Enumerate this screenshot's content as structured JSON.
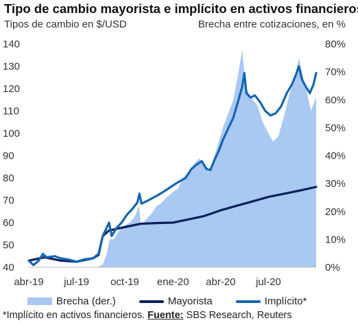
{
  "title": "Tipo de cambio mayorista e implícito en activos financieros",
  "left_axis_label": "Tipos de cambio en $/USD",
  "right_axis_label": "Brecha entre cotizaciones, en %",
  "legend": {
    "brecha": "Brecha (der.)",
    "mayorista": "Mayorista",
    "implicito": "Implícito*"
  },
  "footnote": {
    "prefix": "*Implícito en activos financieros. ",
    "source_label": "Fuente:",
    "source": " SBS Research, Reuters"
  },
  "colors": {
    "brecha": "#a9c8f2",
    "mayorista": "#0a1f5c",
    "implicito": "#1565b3",
    "gridline": "#d0d0d0"
  },
  "chart_data": {
    "type": "line",
    "x_axis": {
      "tick_labels": [
        "abr-19",
        "jul-19",
        "oct-19",
        "ene-20",
        "abr-20",
        "jul-20"
      ],
      "tick_dates": [
        "2019-04-01",
        "2019-07-01",
        "2019-10-01",
        "2020-01-01",
        "2020-04-01",
        "2020-07-01"
      ],
      "range": [
        "2019-04-01",
        "2020-09-30"
      ]
    },
    "y_left": {
      "ylim": [
        40,
        140
      ],
      "ticks": [
        40,
        50,
        60,
        70,
        80,
        90,
        100,
        110,
        120,
        130,
        140
      ]
    },
    "y_right": {
      "ylim": [
        0,
        80
      ],
      "ticks": [
        "0%",
        "10%",
        "20%",
        "30%",
        "40%",
        "50%",
        "60%",
        "70%",
        "80%"
      ]
    },
    "series": [
      {
        "name": "Brecha (der.)",
        "type": "area",
        "axis": "right",
        "points": [
          [
            "2019-04-01",
            0
          ],
          [
            "2019-08-10",
            0
          ],
          [
            "2019-08-20",
            1
          ],
          [
            "2019-08-28",
            5
          ],
          [
            "2019-09-02",
            10
          ],
          [
            "2019-09-10",
            10
          ],
          [
            "2019-09-20",
            13
          ],
          [
            "2019-10-01",
            15
          ],
          [
            "2019-10-10",
            16
          ],
          [
            "2019-10-20",
            18
          ],
          [
            "2019-10-28",
            22
          ],
          [
            "2019-11-01",
            15
          ],
          [
            "2019-11-10",
            17
          ],
          [
            "2019-11-20",
            19
          ],
          [
            "2019-12-01",
            22
          ],
          [
            "2019-12-10",
            23
          ],
          [
            "2019-12-20",
            25
          ],
          [
            "2020-01-01",
            27
          ],
          [
            "2020-01-10",
            28
          ],
          [
            "2020-01-20",
            32
          ],
          [
            "2020-02-01",
            34
          ],
          [
            "2020-02-10",
            37
          ],
          [
            "2020-02-20",
            39
          ],
          [
            "2020-03-01",
            37
          ],
          [
            "2020-03-10",
            34
          ],
          [
            "2020-03-20",
            40
          ],
          [
            "2020-03-28",
            45
          ],
          [
            "2020-04-05",
            50
          ],
          [
            "2020-04-15",
            55
          ],
          [
            "2020-04-25",
            60
          ],
          [
            "2020-05-05",
            70
          ],
          [
            "2020-05-12",
            78
          ],
          [
            "2020-05-18",
            65
          ],
          [
            "2020-05-25",
            62
          ],
          [
            "2020-06-01",
            60
          ],
          [
            "2020-06-10",
            58
          ],
          [
            "2020-06-20",
            52
          ],
          [
            "2020-07-01",
            48
          ],
          [
            "2020-07-10",
            45
          ],
          [
            "2020-07-20",
            47
          ],
          [
            "2020-08-01",
            55
          ],
          [
            "2020-08-10",
            62
          ],
          [
            "2020-08-20",
            68
          ],
          [
            "2020-08-28",
            75
          ],
          [
            "2020-09-05",
            68
          ],
          [
            "2020-09-12",
            63
          ],
          [
            "2020-09-20",
            56
          ],
          [
            "2020-09-30",
            61
          ]
        ]
      },
      {
        "name": "Mayorista",
        "type": "line",
        "axis": "left",
        "points": [
          [
            "2019-04-01",
            43.0
          ],
          [
            "2019-05-01",
            44.5
          ],
          [
            "2019-06-01",
            43.0
          ],
          [
            "2019-07-01",
            42.5
          ],
          [
            "2019-08-01",
            44.0
          ],
          [
            "2019-08-12",
            45.5
          ],
          [
            "2019-08-20",
            54.0
          ],
          [
            "2019-09-01",
            56.5
          ],
          [
            "2019-10-01",
            58.0
          ],
          [
            "2019-11-01",
            59.5
          ],
          [
            "2019-12-01",
            59.8
          ],
          [
            "2020-01-01",
            60.0
          ],
          [
            "2020-02-01",
            61.5
          ],
          [
            "2020-03-01",
            63.0
          ],
          [
            "2020-04-01",
            65.5
          ],
          [
            "2020-05-01",
            67.5
          ],
          [
            "2020-06-01",
            69.5
          ],
          [
            "2020-07-01",
            71.5
          ],
          [
            "2020-08-01",
            73.0
          ],
          [
            "2020-09-01",
            74.5
          ],
          [
            "2020-09-30",
            76.0
          ]
        ]
      },
      {
        "name": "Implícito*",
        "type": "line",
        "axis": "left",
        "points": [
          [
            "2019-04-01",
            43.0
          ],
          [
            "2019-04-10",
            41.0
          ],
          [
            "2019-04-20",
            43.0
          ],
          [
            "2019-04-28",
            46.0
          ],
          [
            "2019-05-05",
            44.5
          ],
          [
            "2019-05-20",
            45.0
          ],
          [
            "2019-06-01",
            44.0
          ],
          [
            "2019-06-15",
            43.5
          ],
          [
            "2019-07-01",
            42.5
          ],
          [
            "2019-07-15",
            43.5
          ],
          [
            "2019-08-01",
            44.0
          ],
          [
            "2019-08-12",
            46.0
          ],
          [
            "2019-08-20",
            54.0
          ],
          [
            "2019-09-01",
            60.0
          ],
          [
            "2019-09-06",
            54.0
          ],
          [
            "2019-09-15",
            57.5
          ],
          [
            "2019-09-25",
            60.0
          ],
          [
            "2019-10-05",
            63.5
          ],
          [
            "2019-10-15",
            66.0
          ],
          [
            "2019-10-25",
            69.0
          ],
          [
            "2019-10-29",
            73.0
          ],
          [
            "2019-11-02",
            68.5
          ],
          [
            "2019-11-15",
            70.0
          ],
          [
            "2019-12-01",
            72.0
          ],
          [
            "2019-12-15",
            74.0
          ],
          [
            "2019-12-28",
            76.0
          ],
          [
            "2020-01-10",
            78.0
          ],
          [
            "2020-01-25",
            80.0
          ],
          [
            "2020-02-05",
            84.0
          ],
          [
            "2020-02-15",
            86.0
          ],
          [
            "2020-02-25",
            87.5
          ],
          [
            "2020-03-05",
            84.0
          ],
          [
            "2020-03-12",
            83.5
          ],
          [
            "2020-03-20",
            88.0
          ],
          [
            "2020-03-28",
            92.0
          ],
          [
            "2020-04-05",
            97.0
          ],
          [
            "2020-04-15",
            102.0
          ],
          [
            "2020-04-25",
            107.0
          ],
          [
            "2020-05-05",
            115.0
          ],
          [
            "2020-05-12",
            121.0
          ],
          [
            "2020-05-16",
            127.0
          ],
          [
            "2020-05-20",
            118.0
          ],
          [
            "2020-05-28",
            116.0
          ],
          [
            "2020-06-05",
            117.0
          ],
          [
            "2020-06-15",
            114.0
          ],
          [
            "2020-06-25",
            110.0
          ],
          [
            "2020-07-05",
            108.0
          ],
          [
            "2020-07-15",
            109.0
          ],
          [
            "2020-07-25",
            112.0
          ],
          [
            "2020-08-05",
            118.0
          ],
          [
            "2020-08-15",
            122.0
          ],
          [
            "2020-08-22",
            126.0
          ],
          [
            "2020-08-28",
            130.0
          ],
          [
            "2020-09-03",
            124.0
          ],
          [
            "2020-09-10",
            121.0
          ],
          [
            "2020-09-18",
            118.0
          ],
          [
            "2020-09-25",
            122.0
          ],
          [
            "2020-09-30",
            127.0
          ]
        ]
      }
    ]
  }
}
